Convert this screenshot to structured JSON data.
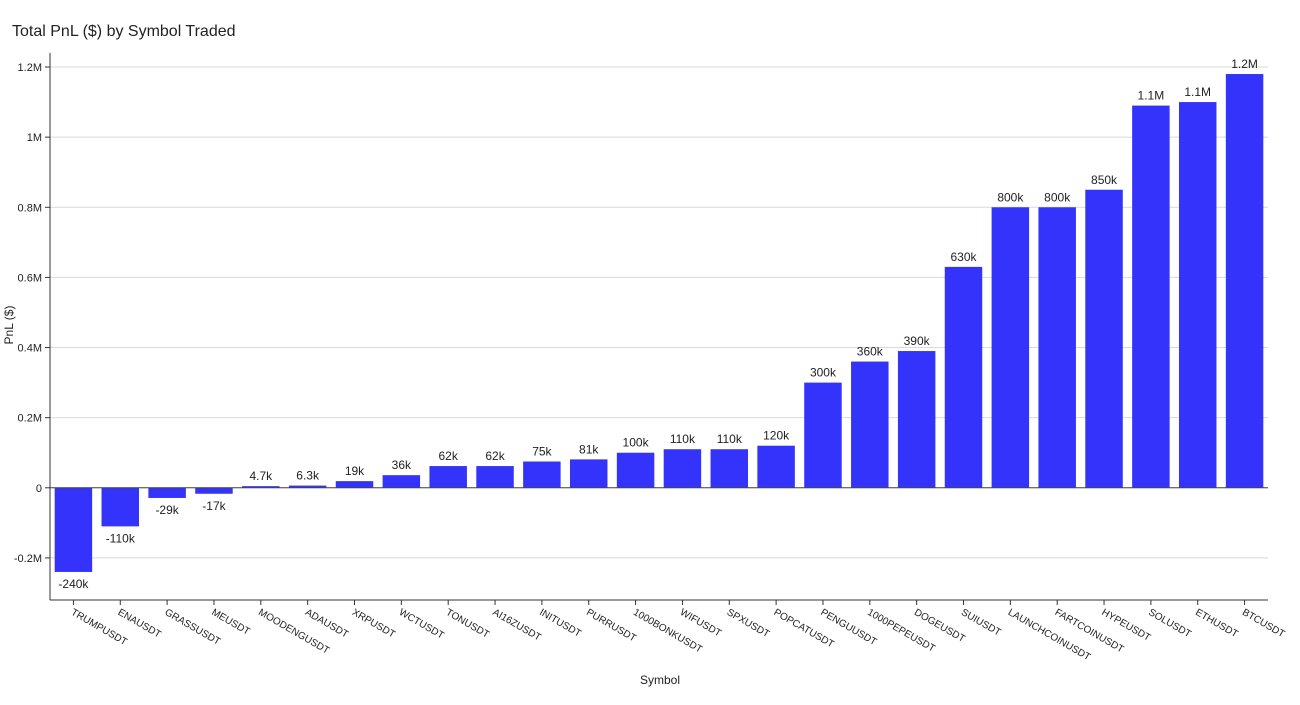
{
  "chart_data": {
    "type": "bar",
    "title": "Total PnL ($) by Symbol Traded",
    "x_label": "Symbol",
    "y_label": "PnL ($)",
    "color": "#2f2ffb",
    "grid": true,
    "categories": [
      "TRUMPUSDT",
      "ENAUSDT",
      "GRASSUSDT",
      "MEUSDT",
      "MOODENGUSDT",
      "ADAUSDT",
      "XRPUSDT",
      "WCTUSDT",
      "TONUSDT",
      "AI16ZUSDT",
      "INITUSDT",
      "PURRUSDT",
      "1000BONKUSDT",
      "WIFUSDT",
      "SPXUSDT",
      "POPCATUSDT",
      "PENGUUSDT",
      "1000PEPEUSDT",
      "DOGEUSDT",
      "SUIUSDT",
      "LAUNCHCOINUSDT",
      "FARTCOINUSDT",
      "HYPEUSDT",
      "SOLUSDT",
      "ETHUSDT",
      "BTCUSDT"
    ],
    "values": [
      -240000,
      -110000,
      -29000,
      -17000,
      4700,
      6300,
      19000,
      36000,
      62000,
      62000,
      75000,
      81000,
      100000,
      110000,
      110000,
      120000,
      300000,
      360000,
      390000,
      630000,
      800000,
      800000,
      850000,
      1090000,
      1100000,
      1180000
    ],
    "value_labels": [
      "-240k",
      "-110k",
      "-29k",
      "-17k",
      "4.7k",
      "6.3k",
      "19k",
      "36k",
      "62k",
      "62k",
      "75k",
      "81k",
      "100k",
      "110k",
      "110k",
      "120k",
      "300k",
      "360k",
      "390k",
      "630k",
      "800k",
      "800k",
      "850k",
      "1.1M",
      "1.1M",
      "1.2M"
    ],
    "ylim": [
      -320000,
      1240000
    ],
    "yticks": [
      {
        "value": -200000,
        "label": "-0.2M"
      },
      0,
      {
        "value": 200000,
        "label": "0.2M"
      },
      {
        "value": 400000,
        "label": "0.4M"
      },
      {
        "value": 600000,
        "label": "0.6M"
      },
      {
        "value": 800000,
        "label": "0.8M"
      },
      {
        "value": 1000000,
        "label": "1M"
      },
      {
        "value": 1200000,
        "label": "1.2M"
      }
    ]
  }
}
